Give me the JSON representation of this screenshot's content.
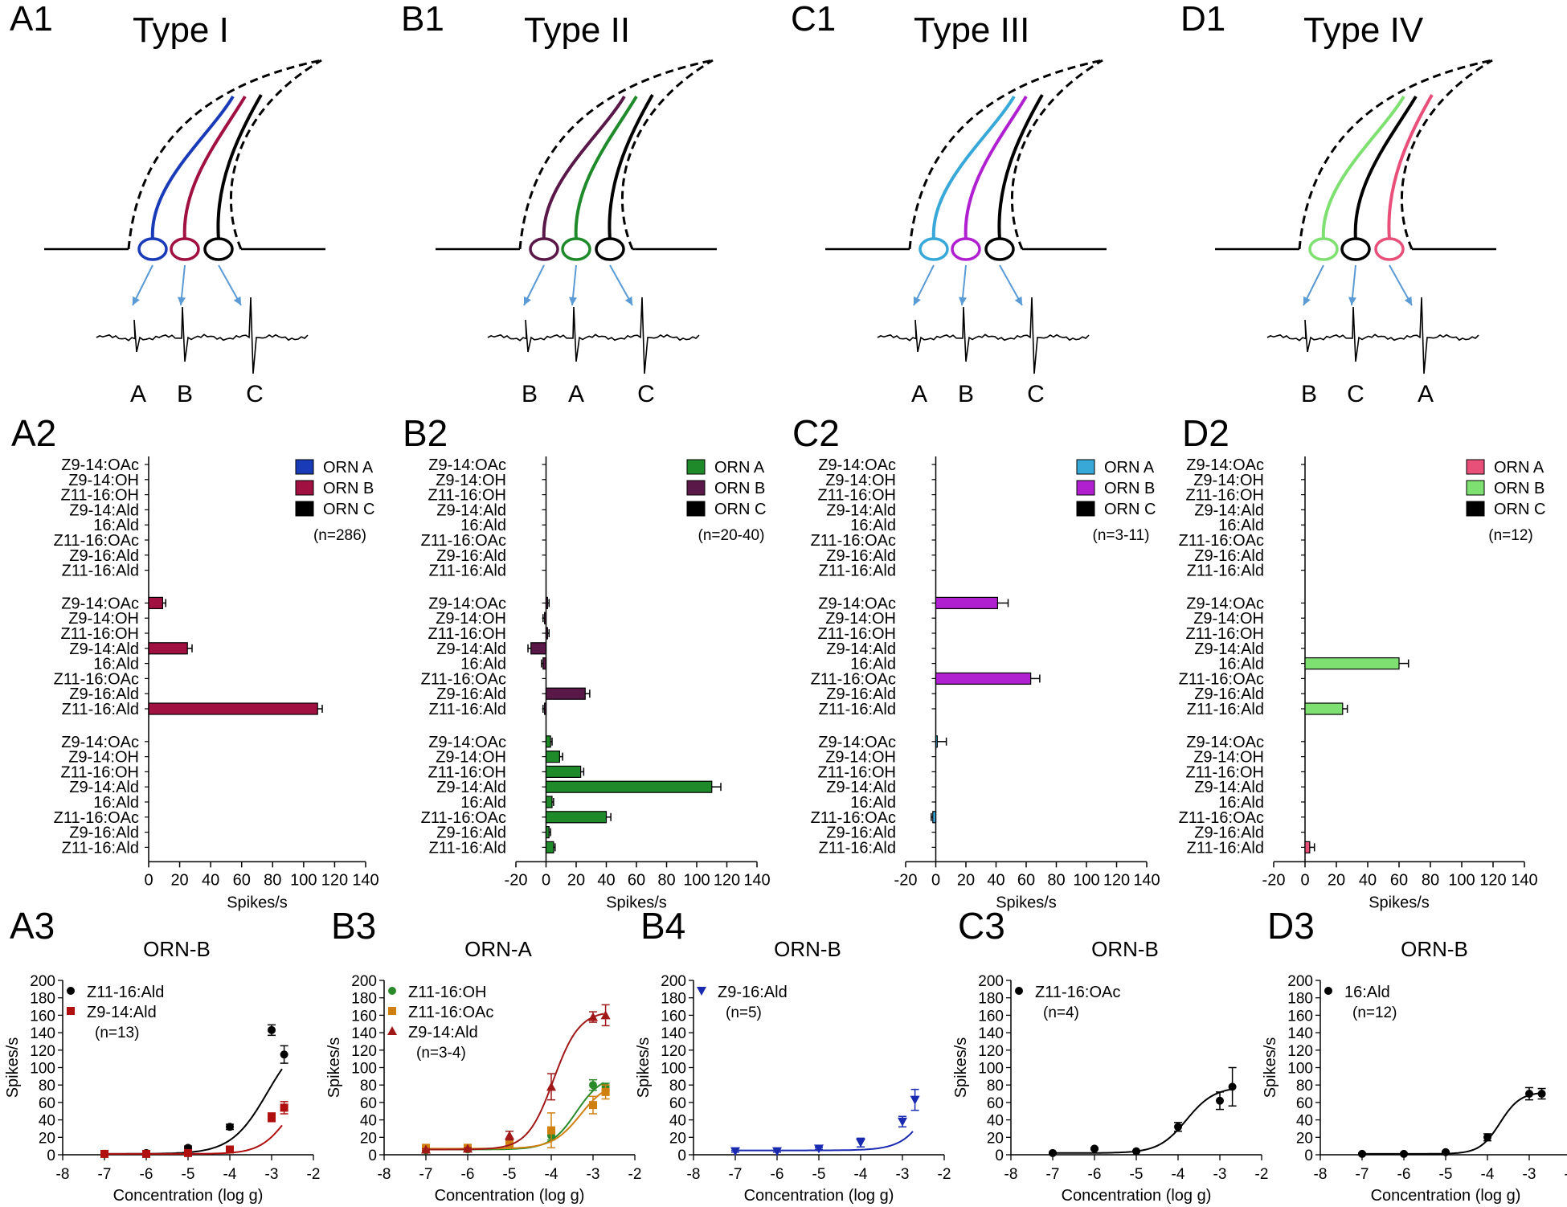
{
  "compounds": [
    "Z9-14:OAc",
    "Z9-14:OH",
    "Z11-16:OH",
    "Z9-14:Ald",
    "16:Ald",
    "Z11-16:OAc",
    "Z9-16:Ald",
    "Z11-16:Ald"
  ],
  "colors": {
    "typeI": {
      "A": "#1a3bb8",
      "B": "#a01040",
      "C": "#000000"
    },
    "typeII": {
      "A": "#1e8a2a",
      "B": "#5a1848",
      "C": "#000000"
    },
    "typeIII": {
      "A": "#38a8d8",
      "B": "#b020d0",
      "C": "#000000"
    },
    "typeIV": {
      "A": "#e8507a",
      "B": "#7ee070",
      "C": "#000000"
    },
    "arrow": "#5b9bd5"
  },
  "panels": [
    {
      "label": "A1",
      "type": "Type I",
      "spikes": [
        "A",
        "B",
        "C"
      ]
    },
    {
      "label": "B1",
      "type": "Type II",
      "spikes": [
        "B",
        "A",
        "C"
      ]
    },
    {
      "label": "C1",
      "type": "Type III",
      "spikes": [
        "A",
        "B",
        "C"
      ]
    },
    {
      "label": "D1",
      "type": "Type IV",
      "spikes": [
        "B",
        "C",
        "A"
      ]
    }
  ],
  "chart_data": [
    {
      "type": "bar",
      "panel": "A2",
      "xlabel": "Spikes/s",
      "xlim": [
        0,
        140
      ],
      "xticks": [
        0,
        20,
        40,
        60,
        80,
        100,
        120,
        140
      ],
      "legend": [
        "ORN A",
        "ORN B",
        "ORN C"
      ],
      "n": "(n=286)",
      "groups": [
        {
          "orn": "ORN C",
          "values": [
            0,
            0,
            0,
            0,
            0,
            0,
            0,
            0
          ],
          "errors": [
            0,
            0,
            0,
            0,
            0,
            0,
            0,
            0
          ]
        },
        {
          "orn": "ORN B",
          "values": [
            9,
            0,
            0,
            25,
            0,
            0,
            0,
            109
          ],
          "errors": [
            2,
            0,
            0,
            3,
            0,
            0,
            0,
            3
          ]
        },
        {
          "orn": "ORN A",
          "values": [
            0,
            0,
            0,
            0,
            0,
            0,
            0,
            0
          ],
          "errors": [
            0,
            0,
            0,
            0,
            0,
            0,
            0,
            0
          ]
        }
      ]
    },
    {
      "type": "bar",
      "panel": "B2",
      "xlabel": "Spikes/s",
      "xlim": [
        -20,
        140
      ],
      "xticks": [
        -20,
        0,
        20,
        40,
        60,
        80,
        100,
        120,
        140
      ],
      "legend": [
        "ORN A",
        "ORN B",
        "ORN C"
      ],
      "n": "(n=20-40)",
      "groups": [
        {
          "orn": "ORN C",
          "values": [
            0,
            0,
            0,
            0,
            0,
            0,
            0,
            0
          ],
          "errors": [
            0,
            0,
            0,
            0,
            0,
            0,
            0,
            0
          ]
        },
        {
          "orn": "ORN B",
          "values": [
            1,
            -1,
            1,
            -10,
            -2,
            0,
            26,
            -1
          ],
          "errors": [
            1,
            1,
            1,
            2,
            1,
            0,
            3,
            1
          ]
        },
        {
          "orn": "ORN A",
          "values": [
            3,
            9,
            23,
            110,
            4,
            40,
            2,
            5
          ],
          "errors": [
            1,
            2,
            2,
            6,
            1,
            3,
            1,
            1
          ]
        }
      ]
    },
    {
      "type": "bar",
      "panel": "C2",
      "xlabel": "Spikes/s",
      "xlim": [
        -20,
        140
      ],
      "xticks": [
        -20,
        0,
        20,
        40,
        60,
        80,
        100,
        120,
        140
      ],
      "legend": [
        "ORN A",
        "ORN B",
        "ORN C"
      ],
      "n": "(n=3-11)",
      "groups": [
        {
          "orn": "ORN C",
          "values": [
            0,
            0,
            0,
            0,
            0,
            0,
            0,
            0
          ],
          "errors": [
            0,
            0,
            0,
            0,
            0,
            0,
            0,
            0
          ]
        },
        {
          "orn": "ORN B",
          "values": [
            41,
            0,
            0,
            0,
            0,
            63,
            0,
            0
          ],
          "errors": [
            7,
            0,
            0,
            0,
            0,
            6,
            0,
            0
          ]
        },
        {
          "orn": "ORN A",
          "values": [
            1,
            0,
            0,
            0,
            0,
            -2,
            0,
            0
          ],
          "errors": [
            6,
            0,
            0,
            0,
            0,
            1,
            0,
            0
          ]
        }
      ]
    },
    {
      "type": "bar",
      "panel": "D2",
      "xlabel": "Spikes/s",
      "xlim": [
        -20,
        140
      ],
      "xticks": [
        -20,
        0,
        20,
        40,
        60,
        80,
        100,
        120,
        140
      ],
      "legend": [
        "ORN A",
        "ORN B",
        "ORN C"
      ],
      "n": "(n=12)",
      "groups": [
        {
          "orn": "ORN C",
          "values": [
            0,
            0,
            0,
            0,
            0,
            0,
            0,
            0
          ],
          "errors": [
            0,
            0,
            0,
            0,
            0,
            0,
            0,
            0
          ]
        },
        {
          "orn": "ORN B",
          "values": [
            0,
            0,
            0,
            0,
            60,
            0,
            0,
            24
          ],
          "errors": [
            0,
            0,
            0,
            0,
            6,
            0,
            0,
            3
          ]
        },
        {
          "orn": "ORN A",
          "values": [
            0,
            0,
            0,
            0,
            0,
            0,
            0,
            3
          ],
          "errors": [
            0,
            0,
            0,
            0,
            0,
            0,
            0,
            3
          ]
        }
      ]
    },
    {
      "type": "line",
      "panel": "A3",
      "title": "ORN-B",
      "xlabel": "Concentration (log g)",
      "ylabel": "Spikes/s",
      "xlim": [
        -8,
        -2
      ],
      "ylim": [
        0,
        200
      ],
      "xticks": [
        -8,
        -7,
        -6,
        -5,
        -4,
        -3,
        -2
      ],
      "yticks": [
        0,
        20,
        40,
        60,
        80,
        100,
        120,
        140,
        160,
        180,
        200
      ],
      "x": [
        -7,
        -6,
        -5,
        -4,
        -3,
        -2.7
      ],
      "n": "(n=13)",
      "series": [
        {
          "name": "Z11-16:Ald",
          "marker": "circle",
          "color": "#000000",
          "values": [
            1,
            2,
            8,
            32,
            143,
            115
          ],
          "errors": [
            1,
            1,
            2,
            3,
            6,
            10
          ],
          "fit": {
            "top": 142,
            "bottom": 1,
            "ec50": -3.1,
            "hill": 1.0
          }
        },
        {
          "name": "Z9-14:Ald",
          "marker": "square",
          "color": "#b01010",
          "values": [
            1,
            1,
            2,
            6,
            43,
            54
          ],
          "errors": [
            1,
            1,
            1,
            1,
            5,
            7
          ],
          "fit": {
            "top": 85,
            "bottom": 1,
            "ec50": -2.6,
            "hill": 1.3
          }
        }
      ]
    },
    {
      "type": "line",
      "panel": "B3",
      "title": "ORN-A",
      "xlabel": "Concentration (log g)",
      "ylabel": "Spikes/s",
      "xlim": [
        -8,
        -2
      ],
      "ylim": [
        0,
        200
      ],
      "xticks": [
        -8,
        -7,
        -6,
        -5,
        -4,
        -3,
        -2
      ],
      "yticks": [
        0,
        20,
        40,
        60,
        80,
        100,
        120,
        140,
        160,
        180,
        200
      ],
      "x": [
        -7,
        -6,
        -5,
        -4,
        -3,
        -2.7
      ],
      "n": "(n=3-4)",
      "series": [
        {
          "name": "Z11-16:OH",
          "marker": "circle",
          "color": "#2a8a2a",
          "values": [
            5,
            6,
            12,
            22,
            80,
            78
          ],
          "errors": [
            1,
            1,
            3,
            5,
            6,
            4
          ],
          "fit": {
            "top": 92,
            "bottom": 6,
            "ec50": -3.4,
            "hill": 1.4
          }
        },
        {
          "name": "Z11-16:OAc",
          "marker": "square",
          "color": "#d08010",
          "values": [
            8,
            8,
            12,
            28,
            57,
            72
          ],
          "errors": [
            1,
            1,
            2,
            20,
            10,
            8
          ],
          "fit": {
            "top": 85,
            "bottom": 7,
            "ec50": -3.3,
            "hill": 1.3
          }
        },
        {
          "name": "Z9-14:Ald",
          "marker": "triangle",
          "color": "#a01818",
          "values": [
            6,
            7,
            22,
            78,
            158,
            160
          ],
          "errors": [
            1,
            1,
            5,
            15,
            6,
            12
          ],
          "fit": {
            "top": 165,
            "bottom": 6,
            "ec50": -3.95,
            "hill": 1.4
          }
        }
      ]
    },
    {
      "type": "line",
      "panel": "B4",
      "title": "ORN-B",
      "xlabel": "Concentration (log g)",
      "ylabel": "Spikes/s",
      "xlim": [
        -8,
        -2
      ],
      "ylim": [
        0,
        200
      ],
      "xticks": [
        -8,
        -7,
        -6,
        -5,
        -4,
        -3,
        -2
      ],
      "yticks": [
        0,
        20,
        40,
        60,
        80,
        100,
        120,
        140,
        160,
        180,
        200
      ],
      "x": [
        -7,
        -6,
        -5,
        -4,
        -3,
        -2.7
      ],
      "n": "(n=5)",
      "series": [
        {
          "name": "Z9-16:Ald",
          "marker": "invtriangle",
          "color": "#1a2ab0",
          "values": [
            4,
            4,
            7,
            14,
            38,
            63
          ],
          "errors": [
            1,
            1,
            1,
            5,
            6,
            12
          ],
          "fit": {
            "top": 200,
            "bottom": 5,
            "ec50": -2.0,
            "hill": 1.2
          }
        }
      ]
    },
    {
      "type": "line",
      "panel": "C3",
      "title": "ORN-B",
      "xlabel": "Concentration (log g)",
      "ylabel": "Spikes/s",
      "xlim": [
        -8,
        -2
      ],
      "ylim": [
        0,
        200
      ],
      "xticks": [
        -8,
        -7,
        -6,
        -5,
        -4,
        -3,
        -2
      ],
      "yticks": [
        0,
        20,
        40,
        60,
        80,
        100,
        120,
        140,
        160,
        180,
        200
      ],
      "x": [
        -7,
        -6,
        -5,
        -4,
        -3,
        -2.7
      ],
      "n": "(n=4)",
      "series": [
        {
          "name": "Z11-16:OAc",
          "marker": "circle",
          "color": "#000000",
          "values": [
            2,
            7,
            4,
            32,
            62,
            78
          ],
          "errors": [
            1,
            1,
            1,
            5,
            10,
            22
          ],
          "fit": {
            "top": 78,
            "bottom": 2,
            "ec50": -3.8,
            "hill": 1.3
          }
        }
      ]
    },
    {
      "type": "line",
      "panel": "D3",
      "title": "ORN-B",
      "xlabel": "Concentration (log g)",
      "ylabel": "Spikes/s",
      "xlim": [
        -8,
        -2
      ],
      "ylim": [
        0,
        200
      ],
      "xticks": [
        -8,
        -7,
        -6,
        -5,
        -4,
        -3,
        -2
      ],
      "yticks": [
        0,
        20,
        40,
        60,
        80,
        100,
        120,
        140,
        160,
        180,
        200
      ],
      "x": [
        -7,
        -6,
        -5,
        -4,
        -3,
        -2.7
      ],
      "n": "(n=12)",
      "series": [
        {
          "name": "16:Ald",
          "marker": "circle",
          "color": "#000000",
          "values": [
            1,
            1,
            3,
            20,
            70,
            70
          ],
          "errors": [
            1,
            1,
            1,
            4,
            7,
            6
          ],
          "fit": {
            "top": 72,
            "bottom": 1,
            "ec50": -3.7,
            "hill": 1.8
          }
        }
      ]
    }
  ]
}
